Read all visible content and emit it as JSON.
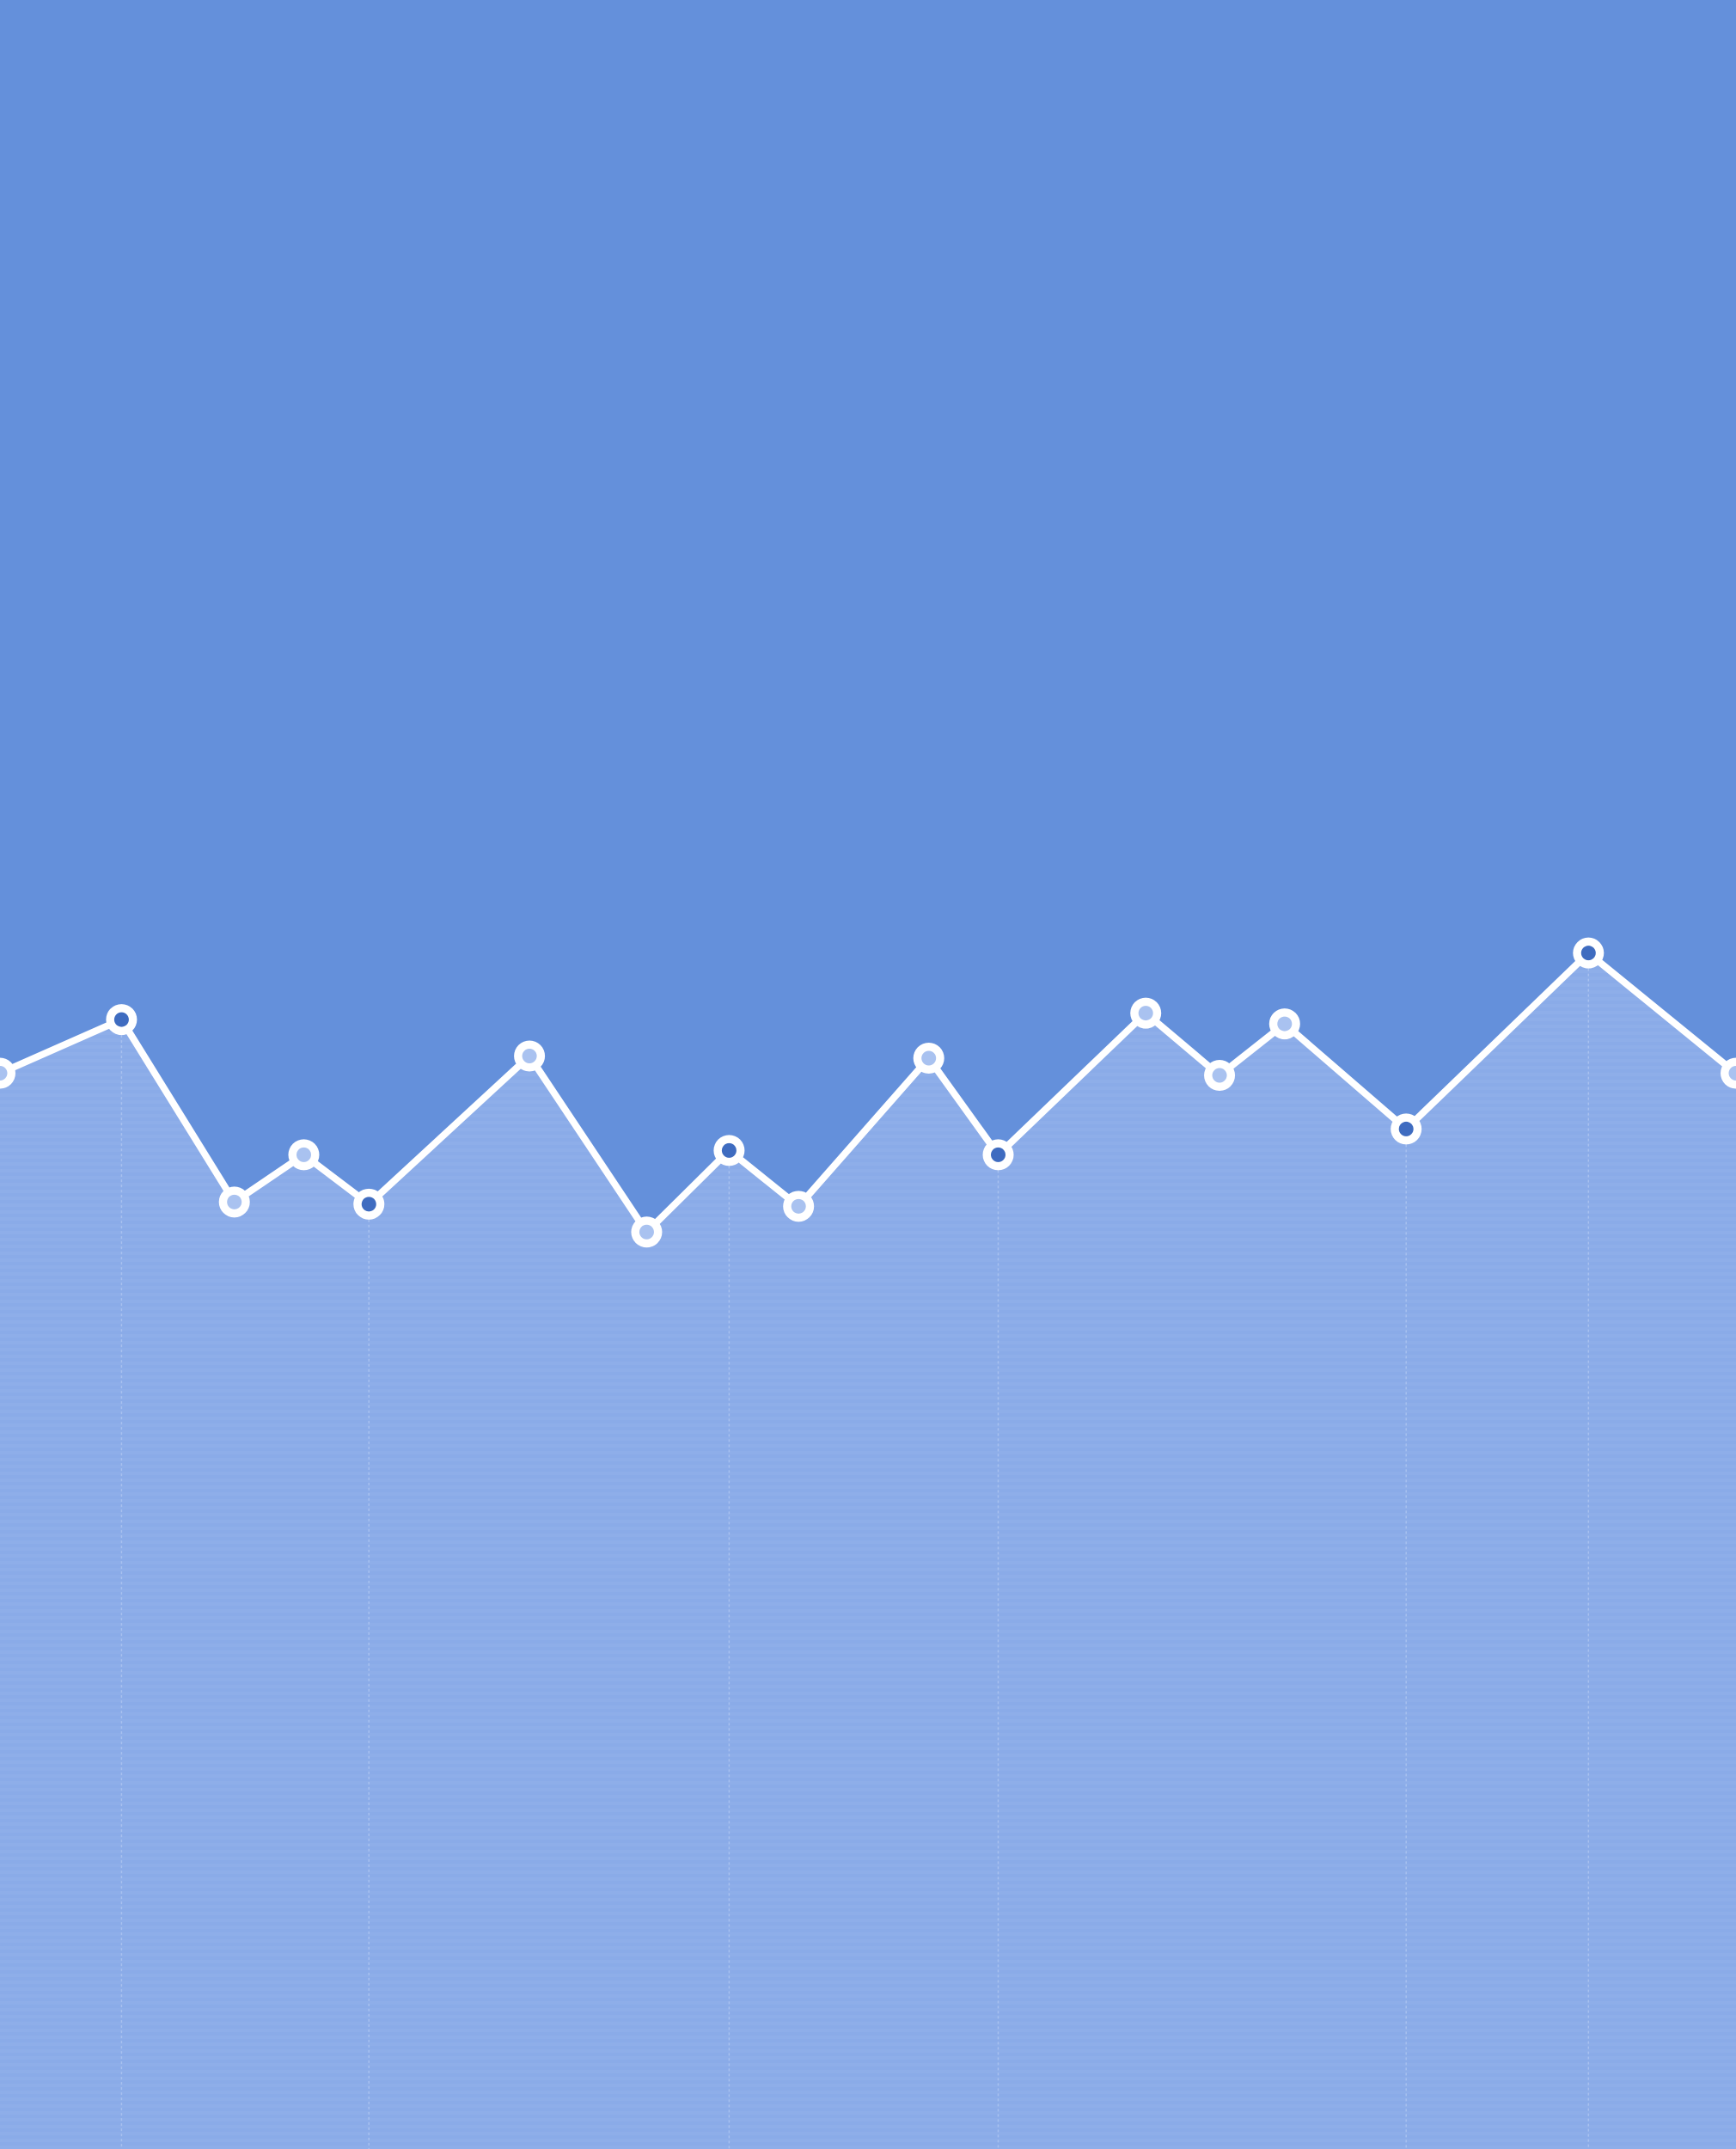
{
  "chart_data": {
    "type": "area",
    "title": "",
    "xlabel": "",
    "ylabel": "",
    "grid": false,
    "legend": "none",
    "xlim": [
      0,
      20
    ],
    "ylim": [
      0,
      100
    ],
    "series": [
      {
        "x": [
          0,
          1.4,
          2.7,
          3.5,
          4.25,
          6.1,
          7.45,
          8.4,
          9.2,
          10.7,
          11.5,
          13.2,
          14.05,
          14.8,
          16.2,
          18.3,
          20
        ],
        "values": [
          50.0,
          52.5,
          44.0,
          46.2,
          43.9,
          50.8,
          42.6,
          46.4,
          43.8,
          50.7,
          46.2,
          52.8,
          49.9,
          52.3,
          47.4,
          55.6,
          50.0
        ],
        "marker_fill": [
          "light",
          "dark",
          "light",
          "light",
          "dark",
          "light",
          "light",
          "dark",
          "light",
          "light",
          "dark",
          "light",
          "light",
          "light",
          "dark",
          "dark",
          "light"
        ]
      }
    ],
    "vertical_rules_at_x": [
      1.4,
      4.25,
      8.4,
      11.5,
      16.2,
      18.3
    ],
    "colors": {
      "background": "#6490db",
      "area_fill": "#8aabe8",
      "line": "#ffffff",
      "marker_light_fill": "#a9c2f0",
      "marker_dark_fill": "#3f6cc0",
      "rule": "#a8c1ef"
    }
  }
}
